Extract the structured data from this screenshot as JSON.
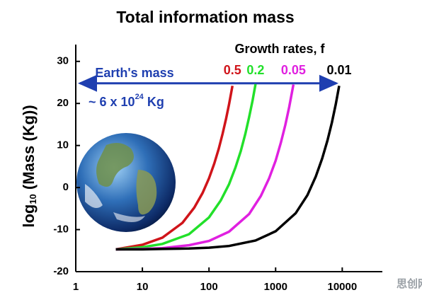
{
  "chart_data": {
    "type": "line",
    "title": "Total information mass",
    "y_label": {
      "main": "log",
      "sub": "10",
      "rest": " (Mass (Kg))"
    },
    "legend_title": "Growth rates, f",
    "annotation": {
      "text": "Earth's mass",
      "mass_main": "~ 6 x 10",
      "mass_sup": "24",
      "mass_unit": " Kg",
      "value": 24.8,
      "color": "#1f3fb0"
    },
    "watermark": "思创网",
    "log_x": true,
    "xlim": [
      1,
      40000
    ],
    "xticks": [
      1,
      10,
      100,
      1000,
      10000
    ],
    "ylim": [
      -20,
      34
    ],
    "yticks": [
      -20,
      -10,
      0,
      10,
      20,
      30
    ],
    "series": [
      {
        "name": "0.5",
        "color": "#d0141a",
        "x": [
          4,
          10,
          20,
          40,
          60,
          80,
          100,
          120,
          140,
          160,
          180,
          200,
          225
        ],
        "values": [
          -14.7,
          -13.6,
          -11.9,
          -8.4,
          -4.8,
          -1.3,
          2.2,
          5.7,
          9.2,
          12.8,
          16.3,
          19.8,
          24.2
        ]
      },
      {
        "name": "0.2",
        "color": "#22e02a",
        "x": [
          4,
          10,
          20,
          50,
          100,
          150,
          200,
          250,
          300,
          350,
          400,
          450,
          500
        ],
        "values": [
          -14.7,
          -14.2,
          -13.4,
          -11.1,
          -7.1,
          -3.1,
          0.8,
          4.8,
          8.7,
          12.7,
          16.7,
          20.6,
          24.6
        ]
      },
      {
        "name": "0.05",
        "color": "#e020e0",
        "x": [
          4,
          10,
          20,
          50,
          100,
          200,
          400,
          600,
          800,
          1000,
          1200,
          1400,
          1600,
          1850
        ],
        "values": [
          -14.7,
          -14.6,
          -14.4,
          -13.7,
          -12.7,
          -10.5,
          -6.3,
          -2.0,
          2.2,
          6.4,
          10.7,
          14.9,
          19.2,
          24.5
        ]
      },
      {
        "name": "0.01",
        "color": "#000000",
        "x": [
          4,
          10,
          20,
          50,
          100,
          200,
          500,
          1000,
          2000,
          3000,
          4000,
          5000,
          6000,
          7000,
          8000,
          9000
        ],
        "values": [
          -14.7,
          -14.7,
          -14.6,
          -14.5,
          -14.3,
          -13.9,
          -12.6,
          -10.4,
          -6.1,
          -1.8,
          2.6,
          6.9,
          11.2,
          15.5,
          19.8,
          24.2
        ]
      }
    ]
  }
}
